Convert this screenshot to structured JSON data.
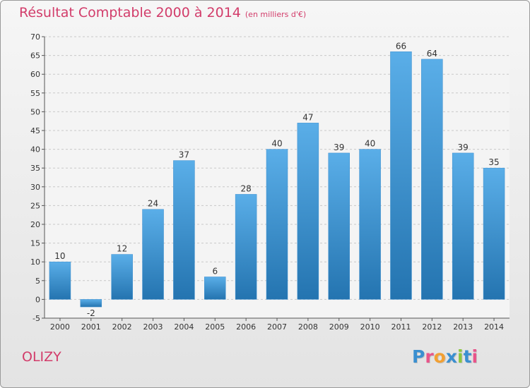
{
  "header": {
    "title": "Résultat Comptable 2000 à 2014",
    "subtitle": "(en milliers d'€)"
  },
  "footer": {
    "commune": "OLIZY",
    "logo": "Proxiti"
  },
  "colors": {
    "title": "#d23c6a",
    "bar_light": "#5aaee8",
    "bar_dark": "#2474b0",
    "logo_letters": [
      "#3a8fd0",
      "#e8548a",
      "#f2a033",
      "#3a8fd0",
      "#8cc63f",
      "#3a8fd0",
      "#e8548a"
    ]
  },
  "chart_data": {
    "type": "bar",
    "title": "Résultat Comptable 2000 à 2014",
    "subtitle": "(en milliers d'€)",
    "categories": [
      "2000",
      "2001",
      "2002",
      "2003",
      "2004",
      "2005",
      "2006",
      "2007",
      "2008",
      "2009",
      "2010",
      "2011",
      "2012",
      "2013",
      "2014"
    ],
    "values": [
      10,
      -2,
      12,
      24,
      37,
      6,
      28,
      40,
      47,
      39,
      40,
      66,
      64,
      39,
      35
    ],
    "xlabel": "",
    "ylabel": "",
    "ylim": [
      -5,
      70
    ],
    "yticks": [
      -5,
      0,
      5,
      10,
      15,
      20,
      25,
      30,
      35,
      40,
      45,
      50,
      55,
      60,
      65,
      70
    ],
    "grid": "horizontal-dashed",
    "legend": "none"
  }
}
